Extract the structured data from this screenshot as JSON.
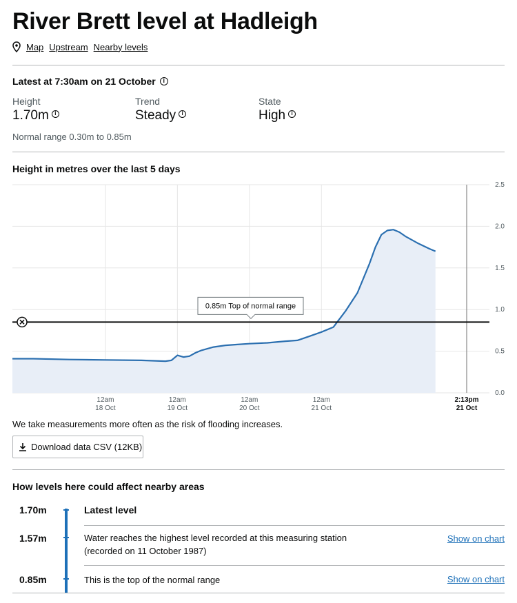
{
  "page": {
    "title": "River Brett level at Hadleigh",
    "links": [
      "Map",
      "Upstream",
      "Nearby levels"
    ]
  },
  "latest": {
    "heading": "Latest at 7:30am on 21 October",
    "height_label": "Height",
    "height_value": "1.70m",
    "trend_label": "Trend",
    "trend_value": "Steady",
    "state_label": "State",
    "state_value": "High",
    "normal_range": "Normal range 0.30m to 0.85m"
  },
  "chart_section": {
    "title": "Height in metres over the last 5 days",
    "note": "We take measurements more often as the risk of flooding increases.",
    "download_label": "Download data CSV (12KB)"
  },
  "chart_data": {
    "type": "area",
    "y_ticks": [
      "2.5",
      "2.0",
      "1.5",
      "1.0",
      "0.5",
      "0.0"
    ],
    "ylim": [
      0,
      2.5
    ],
    "x_ticks": [
      {
        "line1": "12am",
        "line2": "18 Oct"
      },
      {
        "line1": "12am",
        "line2": "19 Oct"
      },
      {
        "line1": "12am",
        "line2": "20 Oct"
      },
      {
        "line1": "12am",
        "line2": "21 Oct"
      }
    ],
    "now_label": {
      "line1": "2:13pm",
      "line2": "21 Oct"
    },
    "threshold": {
      "value": 0.85,
      "label": "0.85m Top of normal range"
    },
    "series": [
      {
        "x_hours": [
          -24,
          -12,
          0,
          12,
          20,
          22,
          24,
          26,
          28,
          30,
          32,
          36,
          40,
          44,
          48,
          54,
          60,
          64,
          68,
          72,
          76,
          80,
          84,
          88,
          90,
          92,
          94,
          96,
          98,
          100,
          104,
          108,
          110
        ],
        "values": [
          0.41,
          0.4,
          0.395,
          0.39,
          0.38,
          0.39,
          0.45,
          0.43,
          0.44,
          0.48,
          0.51,
          0.55,
          0.57,
          0.58,
          0.59,
          0.6,
          0.62,
          0.63,
          0.68,
          0.73,
          0.79,
          0.98,
          1.2,
          1.55,
          1.75,
          1.9,
          1.95,
          1.96,
          1.93,
          1.88,
          1.8,
          1.73,
          1.7
        ]
      }
    ],
    "colors": {
      "line": "#2b6fb0",
      "fill": "#e8eef7",
      "threshold": "#0b0c0c",
      "grid": "#e6e6e6"
    }
  },
  "affect": {
    "heading": "How levels here could affect nearby areas",
    "rows": [
      {
        "level": "1.70m",
        "text": "Latest level",
        "link": ""
      },
      {
        "level": "1.57m",
        "text1": "Water reaches the highest level recorded at this measuring station",
        "text2": "(recorded on 11 October 1987)",
        "link": "Show on chart"
      },
      {
        "level": "0.85m",
        "text": "This is the top of the normal range",
        "link": "Show on chart"
      }
    ]
  }
}
